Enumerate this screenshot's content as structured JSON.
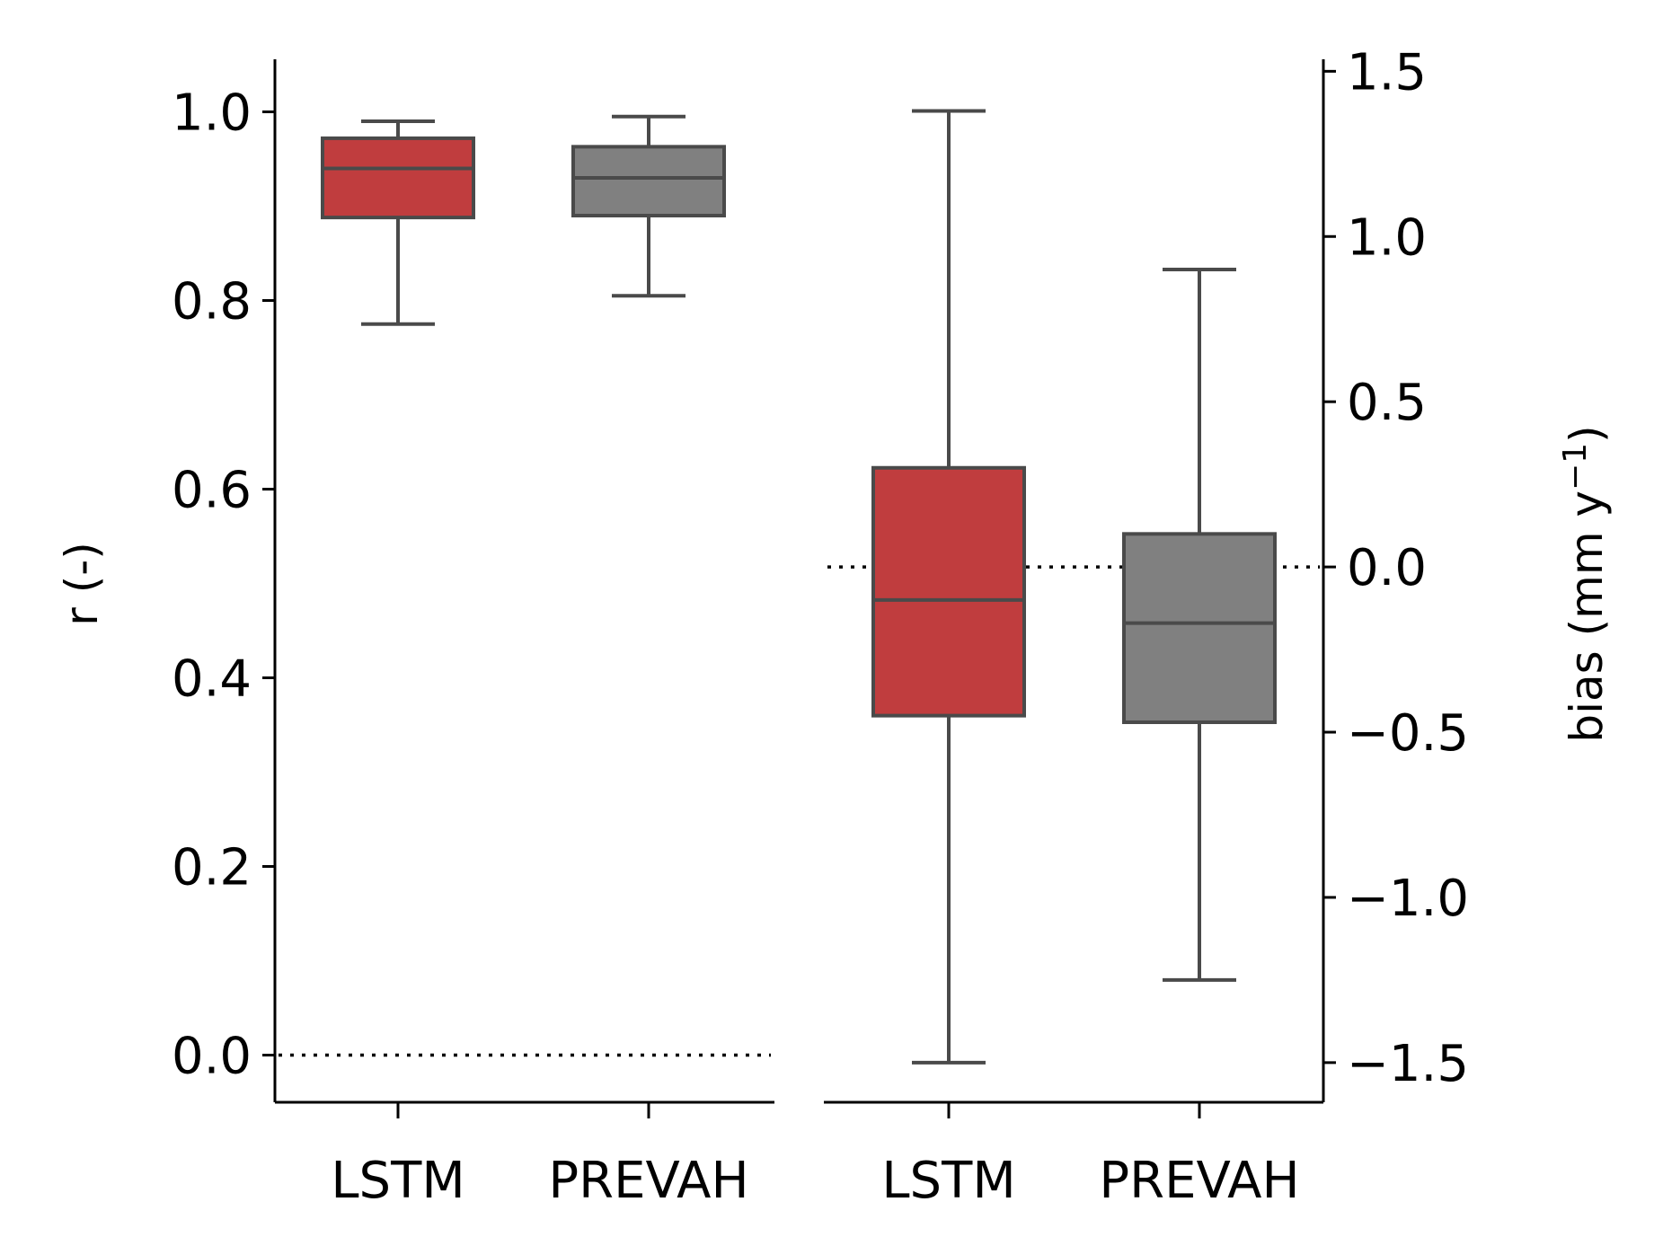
{
  "chart_data": [
    {
      "type": "box",
      "categories": [
        "LSTM",
        "PREVAH"
      ],
      "ylabel": "r (-)",
      "yaxis_side": "left",
      "ylim": [
        -0.05,
        1.05
      ],
      "yticks": [
        0.0,
        0.2,
        0.4,
        0.6,
        0.8,
        1.0
      ],
      "ytick_labels": [
        "0.0",
        "0.2",
        "0.4",
        "0.6",
        "0.8",
        "1.0"
      ],
      "reference_line": 0.0,
      "reference_style": "dotted",
      "series": [
        {
          "category": "LSTM",
          "color": "#c03d3e",
          "whisker_low": 0.775,
          "q1": 0.888,
          "median": 0.94,
          "q3": 0.972,
          "whisker_high": 0.99
        },
        {
          "category": "PREVAH",
          "color": "#808080",
          "whisker_low": 0.805,
          "q1": 0.89,
          "median": 0.93,
          "q3": 0.963,
          "whisker_high": 0.995
        }
      ]
    },
    {
      "type": "box",
      "categories": [
        "LSTM",
        "PREVAH"
      ],
      "ylabel": "bias (mm y",
      "ylabel_sup": "−1",
      "ylabel_suffix": ")",
      "yaxis_side": "right",
      "ylim": [
        -1.62,
        1.52
      ],
      "yticks": [
        -1.5,
        -1.0,
        -0.5,
        0.0,
        0.5,
        1.0,
        1.5
      ],
      "ytick_labels": [
        "−1.5",
        "−1.0",
        "−0.5",
        "0.0",
        "0.5",
        "1.0",
        "1.5"
      ],
      "reference_line": 0.0,
      "reference_style": "dotted",
      "series": [
        {
          "category": "LSTM",
          "color": "#c03d3e",
          "whisker_low": -1.5,
          "q1": -0.45,
          "median": -0.1,
          "q3": 0.3,
          "whisker_high": 1.38
        },
        {
          "category": "PREVAH",
          "color": "#808080",
          "whisker_low": -1.25,
          "q1": -0.47,
          "median": -0.17,
          "q3": 0.1,
          "whisker_high": 0.9
        }
      ]
    }
  ]
}
